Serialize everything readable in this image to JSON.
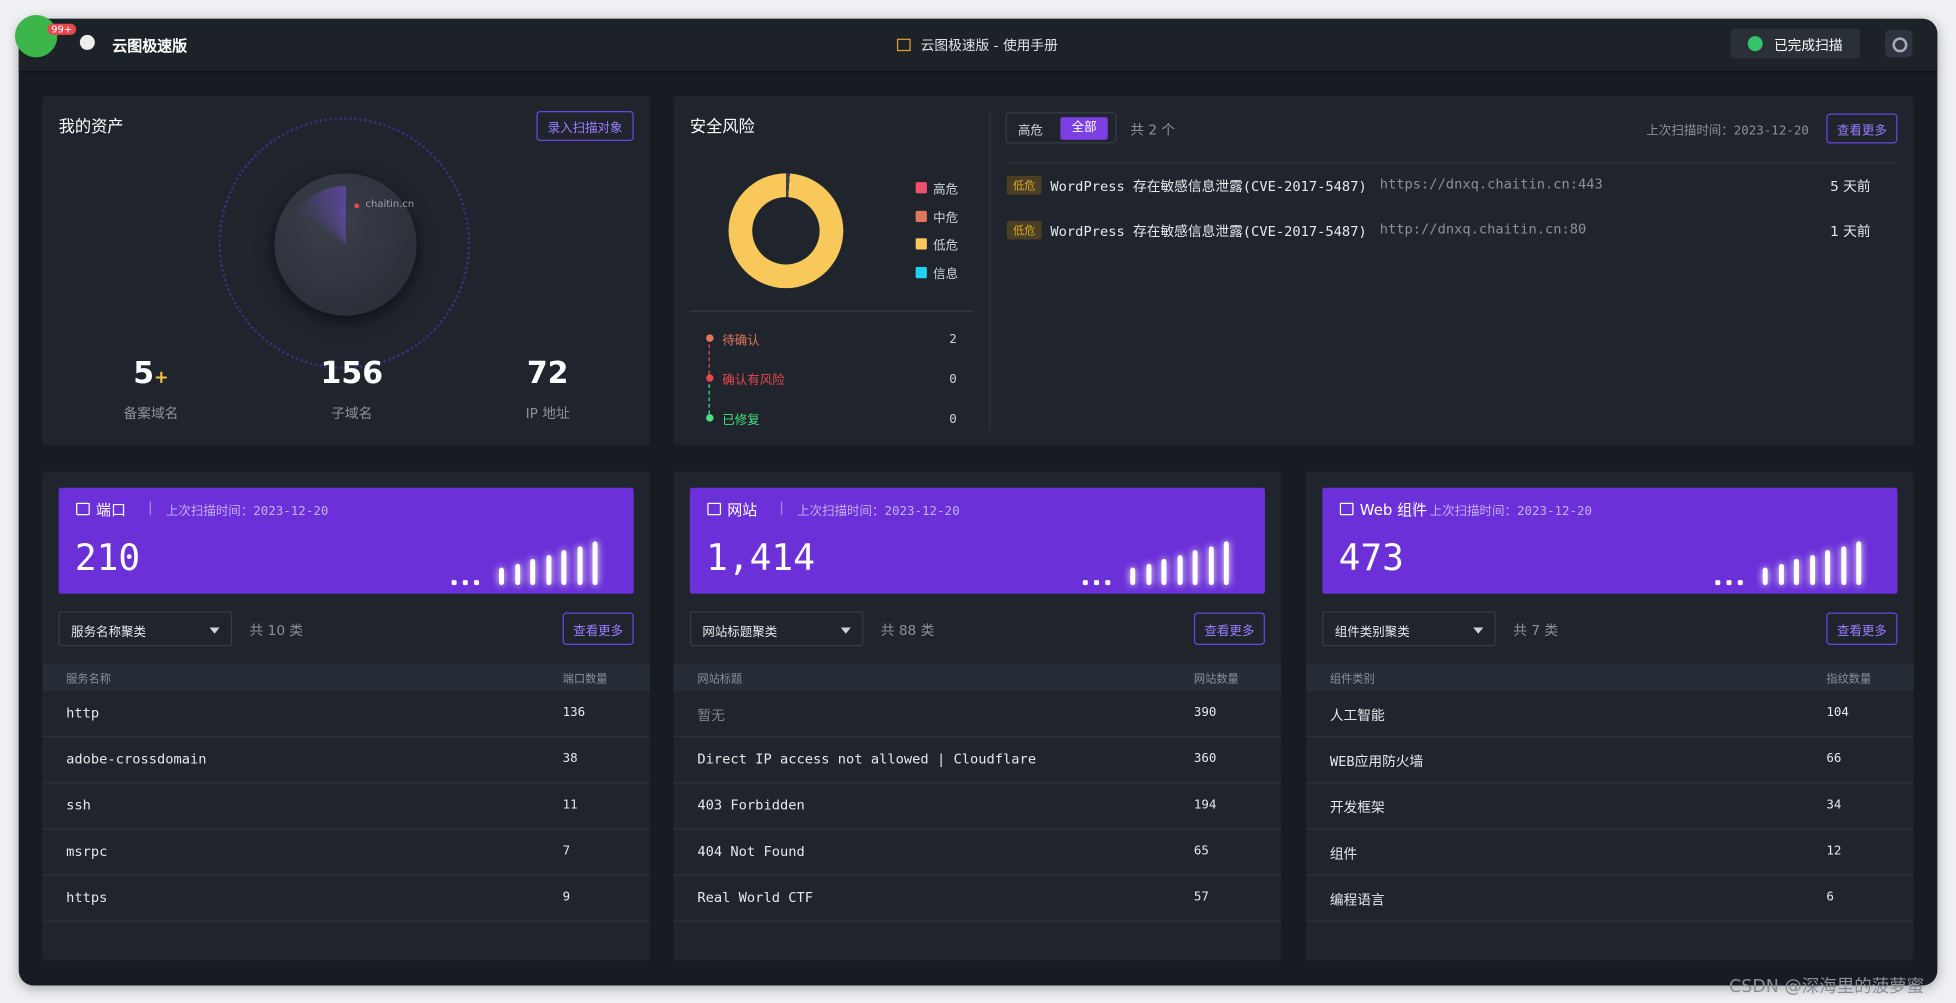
{
  "top_bar": {
    "badge": "99+",
    "app_name": "云图极速版",
    "manual": "云图极速版 - 使用手册",
    "scan_status": "已完成扫描"
  },
  "assets": {
    "title": "我的资产",
    "button": "录入扫描对象",
    "radar_label": "chaitin.cn",
    "stats": [
      {
        "value": "5",
        "suffix": "+",
        "label": "备案域名"
      },
      {
        "value": "156",
        "label": "子域名"
      },
      {
        "value": "72",
        "label": "IP 地址"
      }
    ]
  },
  "risk": {
    "title": "安全风险",
    "legend": [
      "高危",
      "中危",
      "低危",
      "信息"
    ],
    "status": [
      {
        "label": "待确认",
        "count": "2"
      },
      {
        "label": "确认有风险",
        "count": "0"
      },
      {
        "label": "已修复",
        "count": "0"
      }
    ],
    "tabs": [
      "高危",
      "全部"
    ],
    "total": "共 2 个",
    "last_scan": "上次扫描时间：2023-12-20",
    "more": "查看更多",
    "items": [
      {
        "level": "低危",
        "title": "WordPress 存在敏感信息泄露(CVE-2017-5487)",
        "url": "https://dnxq.chaitin.cn:443",
        "time": "5 天前"
      },
      {
        "level": "低危",
        "title": "WordPress 存在敏感信息泄露(CVE-2017-5487)",
        "url": "http://dnxq.chaitin.cn:80",
        "time": "1 天前"
      }
    ]
  },
  "cards": [
    {
      "title": "端口",
      "last_scan": "上次扫描时间：2023-12-20",
      "count": "210",
      "group": "服务名称聚类",
      "total": "共 10 类",
      "more": "查看更多",
      "columns": [
        "服务名称",
        "端口数量"
      ],
      "rows": [
        [
          "http",
          "136"
        ],
        [
          "adobe-crossdomain",
          "38"
        ],
        [
          "ssh",
          "11"
        ],
        [
          "msrpc",
          "7"
        ],
        [
          "https",
          "9"
        ]
      ]
    },
    {
      "title": "网站",
      "last_scan": "上次扫描时间：2023-12-20",
      "count": "1,414",
      "group": "网站标题聚类",
      "total": "共 88 类",
      "more": "查看更多",
      "columns": [
        "网站标题",
        "网站数量"
      ],
      "rows": [
        [
          "暂无",
          "390"
        ],
        [
          "Direct IP access not allowed | Cloudflare",
          "360"
        ],
        [
          "403 Forbidden",
          "194"
        ],
        [
          "404 Not Found",
          "65"
        ],
        [
          "Real World CTF",
          "57"
        ]
      ]
    },
    {
      "title": "Web 组件",
      "last_scan": "上次扫描时间：2023-12-20",
      "count": "473",
      "group": "组件类别聚类",
      "total": "共 7 类",
      "more": "查看更多",
      "columns": [
        "组件类别",
        "指纹数量"
      ],
      "rows": [
        [
          "人工智能",
          "104"
        ],
        [
          "WEB应用防火墙",
          "66"
        ],
        [
          "开发框架",
          "34"
        ],
        [
          "组件",
          "12"
        ],
        [
          "编程语言",
          "6"
        ]
      ]
    }
  ],
  "watermark": "CSDN @深海里的菠萝蜜"
}
